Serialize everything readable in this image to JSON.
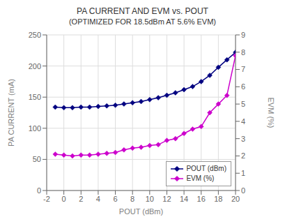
{
  "chart_data": {
    "type": "line",
    "title": "PA CURRENT AND EVM vs. POUT",
    "subtitle": "(OPTIMIZED FOR 18.5dBm AT 5.6% EVM)",
    "xlabel": "POUT (dBm)",
    "ylabel": "PA CURRENT (mA)",
    "y2label": "EVM (%)",
    "x": [
      -1,
      0,
      1,
      2,
      3,
      4,
      5,
      6,
      7,
      8,
      9,
      10,
      11,
      12,
      13,
      14,
      15,
      16,
      17,
      18,
      19,
      20
    ],
    "series": [
      {
        "name": "POUT (dBm)",
        "color": "#000080",
        "marker": "diamond",
        "values": [
          134,
          133,
          133,
          134,
          134,
          135,
          136,
          137,
          139,
          141,
          143,
          146,
          149,
          153,
          157,
          162,
          167,
          175,
          185,
          198,
          210,
          222
        ]
      },
      {
        "name": "EVM (%)",
        "color": "#CC00CC",
        "marker": "diamond",
        "axis": "y2",
        "values": [
          2.1,
          2.05,
          2.0,
          2.05,
          2.05,
          2.1,
          2.15,
          2.2,
          2.35,
          2.45,
          2.5,
          2.6,
          2.65,
          2.9,
          3.0,
          3.3,
          3.55,
          3.7,
          4.5,
          5.0,
          5.5,
          7.8
        ]
      }
    ],
    "xlim": [
      -2,
      20
    ],
    "xticks": [
      -2,
      0,
      2,
      4,
      6,
      8,
      10,
      12,
      14,
      16,
      18,
      20
    ],
    "ylim": [
      0,
      250
    ],
    "yticks": [
      0,
      50,
      100,
      150,
      200,
      250
    ],
    "y2lim": [
      0,
      9
    ],
    "y2ticks": [
      0,
      1,
      2,
      3,
      4,
      5,
      6,
      7,
      8,
      9
    ],
    "grid": true,
    "legend": "lower right"
  }
}
